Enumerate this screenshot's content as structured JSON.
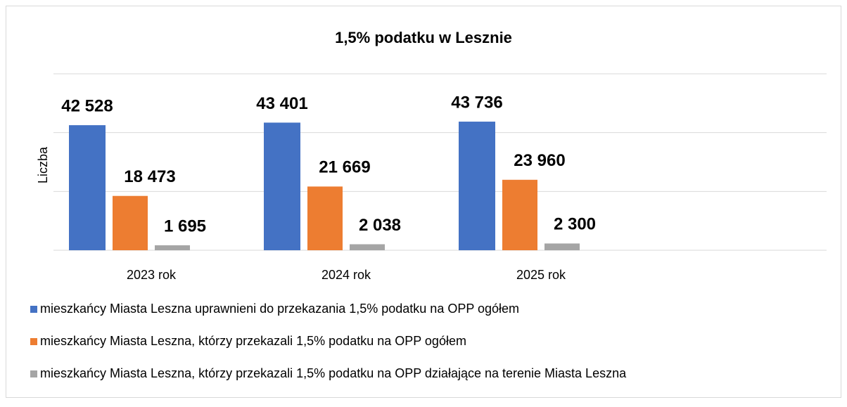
{
  "chart_data": {
    "type": "bar",
    "title": "1,5% podatku w Lesznie",
    "y_label": "Liczba",
    "categories": [
      "2023 rok",
      "2024 rok",
      "2025 rok"
    ],
    "series": [
      {
        "name": "mieszkańcy Miasta Leszna uprawnieni do przekazania 1,5% podatku na OPP ogółem",
        "color": "#4472c4",
        "values": [
          42528,
          43401,
          43736
        ],
        "value_labels": [
          "42 528",
          "43 401",
          "43 736"
        ]
      },
      {
        "name": "mieszkańcy Miasta Leszna, którzy przekazali 1,5% podatku na OPP ogółem",
        "color": "#ed7d31",
        "values": [
          18473,
          21669,
          23960
        ],
        "value_labels": [
          "18 473",
          "21 669",
          "23 960"
        ]
      },
      {
        "name": "mieszkańcy Miasta Leszna, którzy przekazali 1,5% podatku na OPP działające na terenie Miasta Leszna",
        "color": "#a5a5a5",
        "values": [
          1695,
          2038,
          2300
        ],
        "value_labels": [
          "1 695",
          "2 038",
          "2 300"
        ]
      }
    ],
    "ylim": [
      0,
      60000
    ],
    "yticks": [
      0,
      20000,
      40000,
      60000
    ],
    "grid": true,
    "legend": "bottom"
  }
}
